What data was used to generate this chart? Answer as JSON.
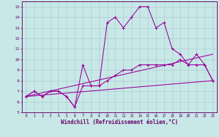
{
  "xlabel": "Windchill (Refroidissement éolien,°C)",
  "ylabel": "",
  "background_color": "#c8e8e8",
  "grid_color": "#aacccc",
  "line_color": "#990099",
  "xlim": [
    -0.5,
    23.5
  ],
  "ylim": [
    5,
    15.5
  ],
  "xticks": [
    0,
    1,
    2,
    3,
    4,
    5,
    6,
    7,
    8,
    9,
    10,
    11,
    12,
    13,
    14,
    15,
    16,
    17,
    18,
    19,
    20,
    21,
    22,
    23
  ],
  "yticks": [
    5,
    6,
    7,
    8,
    9,
    10,
    11,
    12,
    13,
    14,
    15
  ],
  "line1_x": [
    0,
    1,
    2,
    3,
    4,
    5,
    6,
    7,
    8,
    9,
    10,
    11,
    12,
    13,
    14,
    15,
    16,
    17,
    18,
    19,
    20,
    21,
    22,
    23
  ],
  "line1_y": [
    6.5,
    7.0,
    6.5,
    7.0,
    7.0,
    6.5,
    5.5,
    9.5,
    7.5,
    7.5,
    13.5,
    14.0,
    13.0,
    14.0,
    15.0,
    15.0,
    13.0,
    13.5,
    11.0,
    10.5,
    9.5,
    10.5,
    9.5,
    8.0
  ],
  "line2_x": [
    0,
    1,
    2,
    3,
    4,
    5,
    6,
    7,
    8,
    9,
    10,
    11,
    12,
    13,
    14,
    15,
    16,
    17,
    18,
    19,
    20,
    21,
    22,
    23
  ],
  "line2_y": [
    6.5,
    7.0,
    6.5,
    7.0,
    7.0,
    6.5,
    5.5,
    7.5,
    7.5,
    7.5,
    8.0,
    8.5,
    9.0,
    9.0,
    9.5,
    9.5,
    9.5,
    9.5,
    9.5,
    10.0,
    9.5,
    9.5,
    9.5,
    8.0
  ],
  "line3_x": [
    0,
    23
  ],
  "line3_y": [
    6.5,
    10.5
  ],
  "line4_x": [
    0,
    23
  ],
  "line4_y": [
    6.5,
    8.0
  ]
}
